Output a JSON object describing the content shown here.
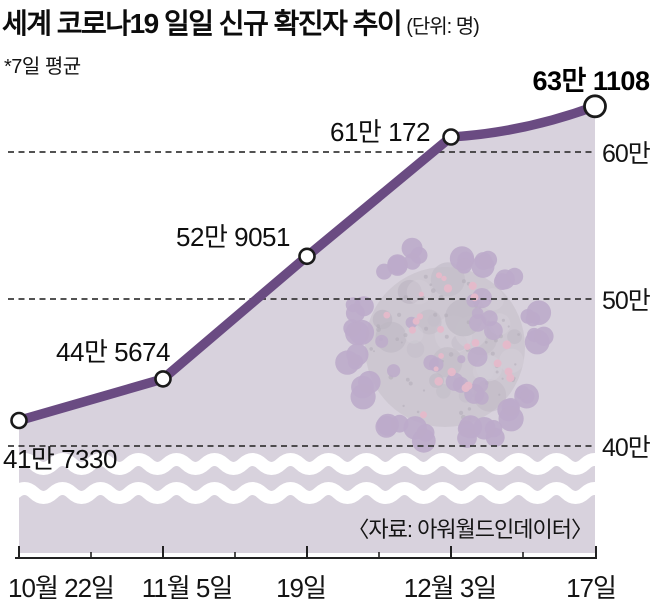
{
  "header": {
    "title": "세계 코로나19 일일 신규 확진자 추이",
    "unit": "(단위: 명)",
    "note": "*7일 평균"
  },
  "source": "〈자료: 아워월드인데이터〉",
  "chart_data": {
    "type": "area",
    "title": "세계 코로나19 일일 신규 확진자 추이 (7일 평균, 단위: 명)",
    "x": [
      "10월 22일",
      "11월 5일",
      "19일",
      "12월 3일",
      "17일"
    ],
    "values": [
      417330,
      445674,
      529051,
      610172,
      631108
    ],
    "point_labels": [
      "41만 7330",
      "44만 5674",
      "52만 9051",
      "61만 172",
      "63만 1108"
    ],
    "y_ticks": [
      {
        "value": 600000,
        "label": "60만"
      },
      {
        "value": 500000,
        "label": "50만"
      },
      {
        "value": 400000,
        "label": "40만"
      }
    ],
    "ylim": [
      380000,
      660000
    ],
    "grid": "horizontal dashed lines at 40만/50만/60만, legend none",
    "annotations": [
      "wavy axis-break band near bottom of shaded area",
      "coronavirus illustration watermark inside area"
    ],
    "colors": {
      "line": "#6a4b82",
      "area_fill": "#d8d2dd",
      "marker_fill": "#ffffff",
      "marker_stroke": "#1a1a1a",
      "grid_line": "#3a3a3a",
      "axis": "#222222",
      "text": "#141414",
      "virus_purple": "#a78cbc",
      "virus_pink": "#f0a6bc",
      "virus_gray": "#c5bfc8"
    }
  }
}
